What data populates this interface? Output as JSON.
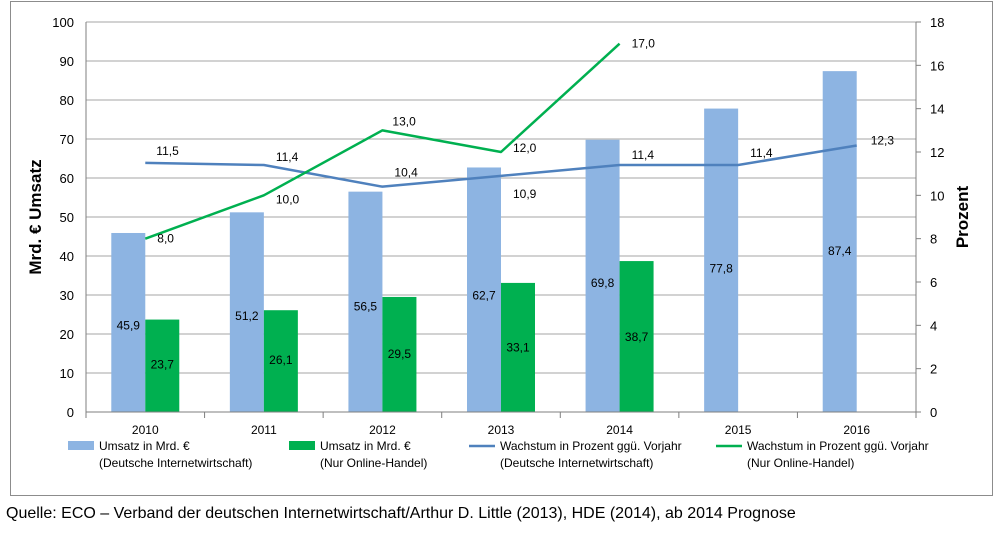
{
  "source_note": "Quelle: ECO – Verband der deutschen Internetwirtschaft/Arthur D. Little (2013), HDE (2014), ab 2014 Prognose",
  "colors": {
    "bar_total": "#8db4e2",
    "bar_online": "#00b050",
    "line_total": "#4f81bd",
    "line_online": "#00b050",
    "gridline": "#a6a6a6",
    "axis": "#7f7f7f"
  },
  "chart_data": {
    "type": "bar",
    "title": "",
    "categories": [
      "2010",
      "2011",
      "2012",
      "2013",
      "2014",
      "2015",
      "2016"
    ],
    "ylabel": "Mrd. € Umsatz",
    "y2label": "Prozent",
    "ylim": [
      0,
      100
    ],
    "y2lim": [
      0,
      18
    ],
    "yticks": [
      "0",
      "10",
      "20",
      "30",
      "40",
      "50",
      "60",
      "70",
      "80",
      "90",
      "100"
    ],
    "y2ticks": [
      "0",
      "2",
      "4",
      "6",
      "8",
      "10",
      "12",
      "14",
      "16",
      "18"
    ],
    "grid": true,
    "legend_position": "bottom",
    "series": [
      {
        "name": "Umsatz in Mrd. €",
        "name_sub": "(Deutsche Internetwirtschaft)",
        "kind": "bar",
        "axis": "left",
        "values": [
          45.9,
          51.2,
          56.5,
          62.7,
          69.8,
          77.8,
          87.4
        ],
        "labels": [
          "45,9",
          "51,2",
          "56,5",
          "62,7",
          "69,8",
          "77,8",
          "87,4"
        ]
      },
      {
        "name": "Umsatz in Mrd. €",
        "name_sub": "(Nur Online-Handel)",
        "kind": "bar",
        "axis": "left",
        "values": [
          23.7,
          26.1,
          29.5,
          33.1,
          38.7,
          null,
          null
        ],
        "labels": [
          "23,7",
          "26,1",
          "29,5",
          "33,1",
          "38,7",
          "",
          ""
        ]
      },
      {
        "name": "Wachstum in Prozent ggü. Vorjahr",
        "name_sub": "(Deutsche Internetwirtschaft)",
        "kind": "line",
        "axis": "right",
        "values": [
          11.5,
          11.4,
          10.4,
          10.9,
          11.4,
          11.4,
          12.3
        ],
        "labels": [
          "11,5",
          "11,4",
          "10,4",
          "10,9",
          "11,4",
          "11,4",
          "12,3"
        ]
      },
      {
        "name": "Wachstum in Prozent ggü. Vorjahr",
        "name_sub": "(Nur Online-Handel)",
        "kind": "line",
        "axis": "right",
        "values": [
          8.0,
          10.0,
          13.0,
          12.0,
          17.0,
          null,
          null
        ],
        "labels": [
          "8,0",
          "10,0",
          "13,0",
          "12,0",
          "17,0",
          "",
          ""
        ]
      }
    ]
  }
}
